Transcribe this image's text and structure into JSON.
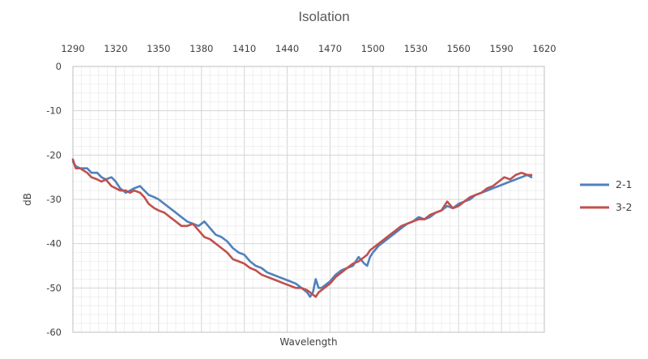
{
  "chart_data": {
    "type": "line",
    "title": "Isolation",
    "xlabel": "Wavelength",
    "ylabel": "dB",
    "xlim": [
      1290,
      1620
    ],
    "ylim": [
      -60,
      0
    ],
    "x_ticks": [
      "1290",
      "1320",
      "1350",
      "1380",
      "1410",
      "1440",
      "1470",
      "1500",
      "1530",
      "1560",
      "1590",
      "1620"
    ],
    "y_ticks": [
      "0",
      "-10",
      "-20",
      "-30",
      "-40",
      "-50",
      "-60"
    ],
    "x_axis_position": "top",
    "grid": true,
    "legend": "right",
    "series": [
      {
        "name": "2-1",
        "color": "#4f81bd",
        "x": [
          1290,
          1292,
          1295,
          1300,
          1303,
          1307,
          1310,
          1313,
          1317,
          1320,
          1323,
          1327,
          1330,
          1333,
          1337,
          1340,
          1343,
          1347,
          1350,
          1354,
          1358,
          1362,
          1366,
          1370,
          1374,
          1378,
          1382,
          1386,
          1390,
          1394,
          1398,
          1402,
          1406,
          1410,
          1414,
          1418,
          1422,
          1426,
          1430,
          1434,
          1438,
          1442,
          1446,
          1450,
          1454,
          1456,
          1458,
          1460,
          1462,
          1464,
          1466,
          1468,
          1470,
          1474,
          1478,
          1482,
          1486,
          1490,
          1494,
          1496,
          1498,
          1500,
          1504,
          1508,
          1512,
          1516,
          1520,
          1524,
          1528,
          1532,
          1536,
          1540,
          1544,
          1548,
          1552,
          1556,
          1560,
          1564,
          1568,
          1572,
          1576,
          1580,
          1584,
          1588,
          1592,
          1596,
          1600,
          1604,
          1608,
          1611
        ],
        "values": [
          -21.5,
          -22.5,
          -23,
          -23,
          -24,
          -24,
          -25,
          -25.5,
          -25,
          -26,
          -27.5,
          -28.5,
          -28,
          -27.5,
          -27,
          -28,
          -29,
          -29.5,
          -30,
          -31,
          -32,
          -33,
          -34,
          -35,
          -35.5,
          -36,
          -35,
          -36.5,
          -38,
          -38.5,
          -39.5,
          -41,
          -42,
          -42.5,
          -44,
          -45,
          -45.5,
          -46.5,
          -47,
          -47.5,
          -48,
          -48.5,
          -49,
          -50,
          -51,
          -52,
          -51,
          -48,
          -50,
          -50,
          -49.5,
          -49,
          -48.5,
          -47,
          -46,
          -45.5,
          -45,
          -43,
          -44.5,
          -45,
          -43,
          -42,
          -40.5,
          -39.5,
          -38.5,
          -37.5,
          -36.5,
          -35.5,
          -35,
          -34,
          -34.5,
          -34,
          -33,
          -32.5,
          -31.5,
          -32,
          -31,
          -30.5,
          -30,
          -29,
          -28.5,
          -28,
          -27.5,
          -27,
          -26.5,
          -26,
          -25.5,
          -25,
          -24.5,
          -25
        ]
      },
      {
        "name": "3-2",
        "color": "#c0504d",
        "x": [
          1290,
          1292,
          1295,
          1300,
          1303,
          1307,
          1310,
          1313,
          1317,
          1320,
          1323,
          1327,
          1330,
          1333,
          1337,
          1340,
          1343,
          1347,
          1350,
          1354,
          1358,
          1362,
          1366,
          1370,
          1374,
          1378,
          1382,
          1386,
          1390,
          1394,
          1398,
          1402,
          1406,
          1410,
          1414,
          1418,
          1422,
          1426,
          1430,
          1434,
          1438,
          1442,
          1446,
          1450,
          1454,
          1456,
          1458,
          1460,
          1462,
          1464,
          1466,
          1468,
          1470,
          1474,
          1478,
          1482,
          1486,
          1490,
          1494,
          1496,
          1498,
          1500,
          1504,
          1508,
          1512,
          1516,
          1520,
          1524,
          1528,
          1532,
          1536,
          1540,
          1544,
          1548,
          1552,
          1556,
          1560,
          1564,
          1568,
          1572,
          1576,
          1580,
          1584,
          1588,
          1592,
          1596,
          1600,
          1604,
          1608,
          1611
        ],
        "values": [
          -21,
          -23,
          -23,
          -24,
          -25,
          -25.5,
          -26,
          -25.5,
          -27,
          -27.5,
          -28,
          -28,
          -28.5,
          -28,
          -28.5,
          -29.5,
          -31,
          -32,
          -32.5,
          -33,
          -34,
          -35,
          -36,
          -36,
          -35.5,
          -37,
          -38.5,
          -39,
          -40,
          -41,
          -42,
          -43.5,
          -44,
          -44.5,
          -45.5,
          -46,
          -47,
          -47.5,
          -48,
          -48.5,
          -49,
          -49.5,
          -50,
          -50,
          -50.5,
          -51,
          -51.5,
          -52,
          -51,
          -50.5,
          -50,
          -49.5,
          -49,
          -47.5,
          -46.5,
          -45.5,
          -44.5,
          -44,
          -43,
          -42.5,
          -41.5,
          -41,
          -40,
          -39,
          -38,
          -37,
          -36,
          -35.5,
          -35,
          -34.5,
          -34.5,
          -33.5,
          -33,
          -32.5,
          -30.5,
          -32,
          -31.5,
          -30.5,
          -29.5,
          -29,
          -28.5,
          -27.5,
          -27,
          -26,
          -25,
          -25.5,
          -24.5,
          -24,
          -24.5,
          -24.5
        ]
      }
    ]
  }
}
